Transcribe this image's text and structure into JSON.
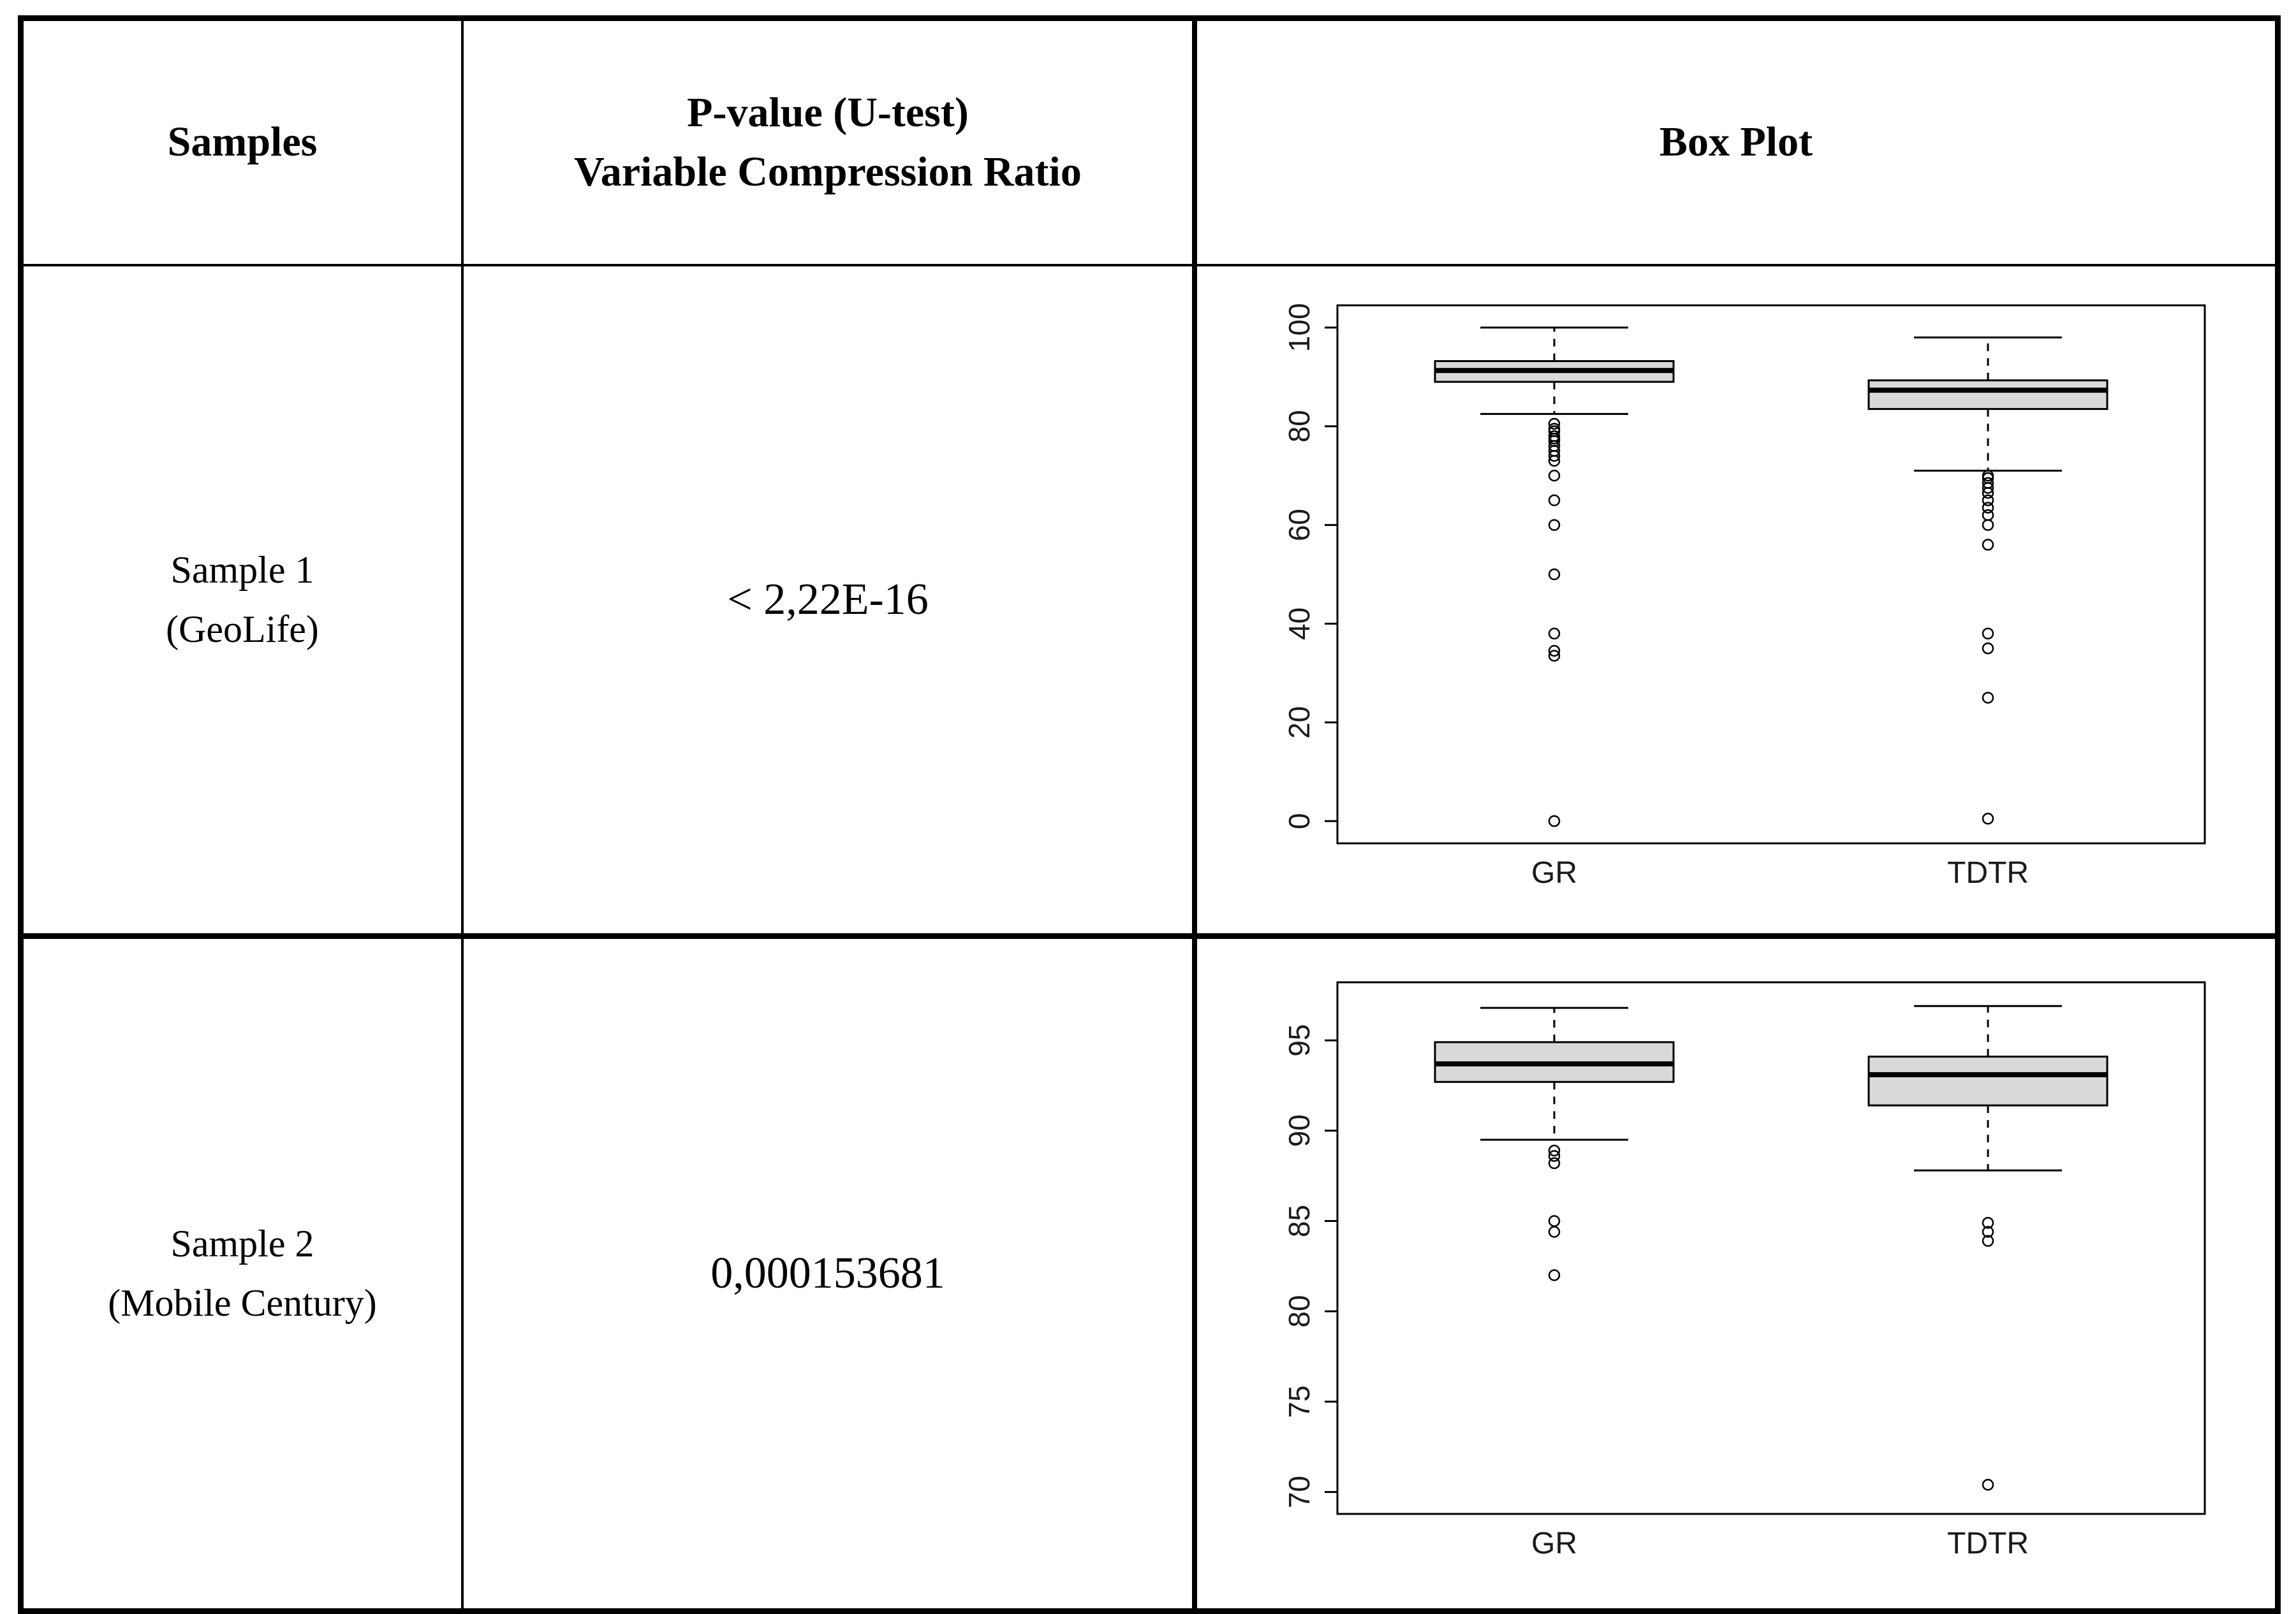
{
  "table": {
    "header": {
      "samples": "Samples",
      "pvalue_line1": "P-value (U-test)",
      "pvalue_line2": "Variable Compression Ratio",
      "boxplot": "Box Plot"
    },
    "rows": [
      {
        "sample_line1": "Sample 1",
        "sample_line2": "(GeoLife)",
        "pvalue": "< 2,22E-16"
      },
      {
        "sample_line1": "Sample 2",
        "sample_line2": "(Mobile Century)",
        "pvalue": "0,000153681"
      }
    ]
  },
  "colors": {
    "line": "#000000",
    "box_fill": "#d9d9d9"
  },
  "chart_data": [
    {
      "type": "boxplot",
      "title": "",
      "categories": [
        "GR",
        "TDTR"
      ],
      "ylim": [
        0,
        100
      ],
      "yticks": [
        0,
        20,
        40,
        60,
        80,
        100
      ],
      "grid": false,
      "series": [
        {
          "name": "GR",
          "q1": 89,
          "median": 91.3,
          "q3": 93.2,
          "whisker_low": 82.5,
          "whisker_high": 100,
          "outliers": [
            80.5,
            79.5,
            79,
            78,
            77.5,
            77,
            76,
            75,
            74,
            73,
            70,
            65,
            60,
            50,
            38,
            34.5,
            33.5,
            0
          ]
        },
        {
          "name": "TDTR",
          "q1": 83.5,
          "median": 87.3,
          "q3": 89.3,
          "whisker_low": 71,
          "whisker_high": 98,
          "outliers": [
            70,
            69.5,
            68.5,
            67.5,
            66.5,
            65,
            63.5,
            62,
            60,
            56,
            38,
            35,
            25,
            0.5
          ]
        }
      ]
    },
    {
      "type": "boxplot",
      "title": "",
      "categories": [
        "GR",
        "TDTR"
      ],
      "ylim": [
        70,
        97
      ],
      "yticks": [
        70,
        75,
        80,
        85,
        90,
        95
      ],
      "grid": false,
      "series": [
        {
          "name": "GR",
          "q1": 92.7,
          "median": 93.7,
          "q3": 94.9,
          "whisker_low": 89.5,
          "whisker_high": 96.8,
          "outliers": [
            88.9,
            88.6,
            88.2,
            85.0,
            84.4,
            82.0
          ]
        },
        {
          "name": "TDTR",
          "q1": 91.4,
          "median": 93.1,
          "q3": 94.1,
          "whisker_low": 87.8,
          "whisker_high": 96.9,
          "outliers": [
            84.9,
            84.4,
            83.9,
            70.4
          ]
        }
      ]
    }
  ]
}
